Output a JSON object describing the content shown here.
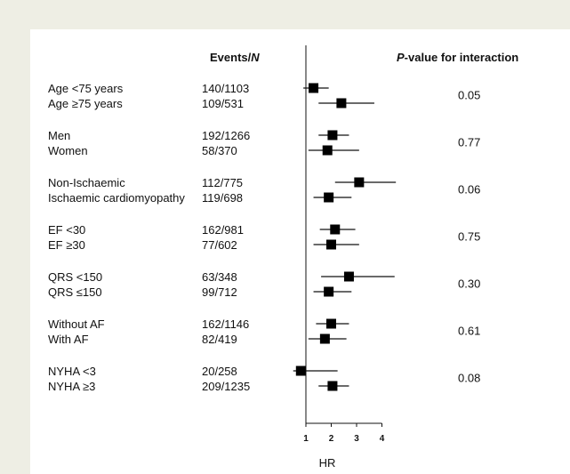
{
  "chart_data": {
    "type": "forest",
    "column_headers": {
      "events": "Events/",
      "events_n": "N",
      "pvalue_prefix": "P",
      "pvalue_rest": "-value for interaction"
    },
    "xlabel": "HR",
    "xlim": [
      0.75,
      4.6
    ],
    "xticks": [
      "1",
      "2",
      "3",
      "4"
    ],
    "reference_line": 1,
    "groups": [
      {
        "pvalue": "0.05",
        "rows": [
          {
            "label": "Age <75 years",
            "events": "140/1103",
            "hr": 1.3,
            "ci": [
              0.9,
              1.9
            ]
          },
          {
            "label": "Age ≥75 years",
            "events": "109/531",
            "hr": 2.4,
            "ci": [
              1.5,
              3.7
            ]
          }
        ]
      },
      {
        "pvalue": "0.77",
        "rows": [
          {
            "label": "Men",
            "events": "192/1266",
            "hr": 2.05,
            "ci": [
              1.5,
              2.7
            ]
          },
          {
            "label": "Women",
            "events": "58/370",
            "hr": 1.85,
            "ci": [
              1.1,
              3.1
            ]
          }
        ]
      },
      {
        "pvalue": "0.06",
        "rows": [
          {
            "label": "Non-Ischaemic",
            "events": "112/775",
            "hr": 3.1,
            "ci": [
              2.15,
              4.55
            ]
          },
          {
            "label": "Ischaemic cardiomyopathy",
            "events": "119/698",
            "hr": 1.9,
            "ci": [
              1.3,
              2.8
            ]
          }
        ]
      },
      {
        "pvalue": "0.75",
        "rows": [
          {
            "label": "EF <30",
            "events": "162/981",
            "hr": 2.15,
            "ci": [
              1.55,
              2.95
            ]
          },
          {
            "label": "EF ≥30",
            "events": "77/602",
            "hr": 2.0,
            "ci": [
              1.3,
              3.1
            ]
          }
        ]
      },
      {
        "pvalue": "0.30",
        "rows": [
          {
            "label": "QRS <150",
            "events": "63/348",
            "hr": 2.7,
            "ci": [
              1.6,
              4.5
            ]
          },
          {
            "label": "QRS ≤150",
            "events": "99/712",
            "hr": 1.9,
            "ci": [
              1.3,
              2.8
            ]
          }
        ]
      },
      {
        "pvalue": "0.61",
        "rows": [
          {
            "label": "Without AF",
            "events": "162/1146",
            "hr": 2.0,
            "ci": [
              1.4,
              2.7
            ]
          },
          {
            "label": "With AF",
            "events": "82/419",
            "hr": 1.75,
            "ci": [
              1.1,
              2.6
            ]
          }
        ]
      },
      {
        "pvalue": "0.08",
        "rows": [
          {
            "label": "NYHA <3",
            "events": "20/258",
            "hr": 0.8,
            "ci": [
              0.5,
              2.25
            ]
          },
          {
            "label": "NYHA ≥3",
            "events": "209/1235",
            "hr": 2.05,
            "ci": [
              1.5,
              2.7
            ]
          }
        ]
      }
    ]
  }
}
